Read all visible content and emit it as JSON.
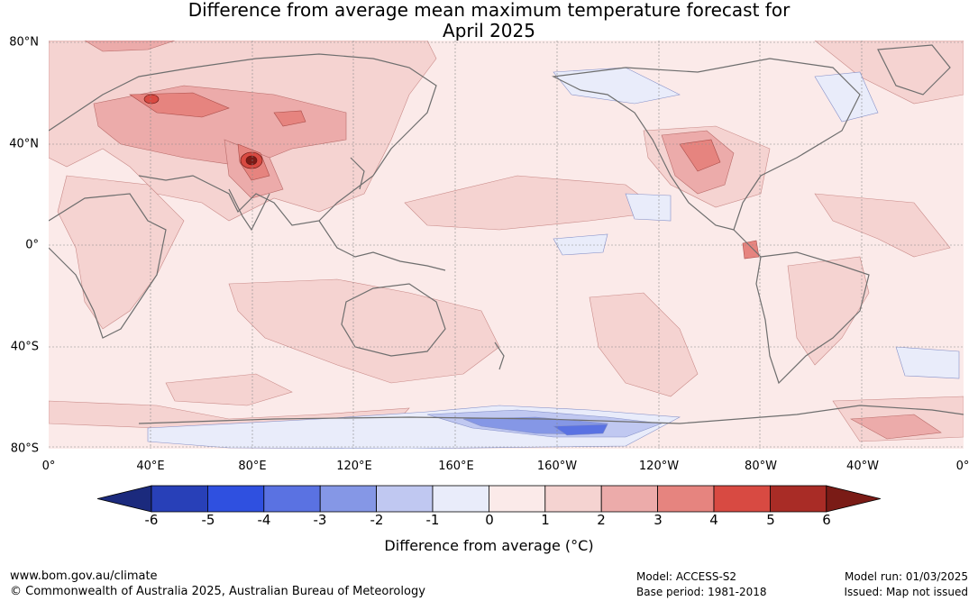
{
  "title": {
    "line1": "Difference from average mean maximum temperature forecast for",
    "line2": "April 2025"
  },
  "map": {
    "lat_labels": [
      "80°N",
      "40°N",
      "0°",
      "40°S",
      "80°S"
    ],
    "lon_labels": [
      "0°",
      "40°E",
      "80°E",
      "120°E",
      "160°E",
      "160°W",
      "120°W",
      "80°W",
      "40°W",
      "0°"
    ],
    "background_anomaly_color": "#fbeae9",
    "coastline_color": "#6e6e6e"
  },
  "legend": {
    "title": "Difference from average (°C)",
    "ticks": [
      "-6",
      "-5",
      "-4",
      "-3",
      "-2",
      "-1",
      "0",
      "1",
      "2",
      "3",
      "4",
      "5",
      "6"
    ],
    "colors": [
      "#1b2a7d",
      "#2840b8",
      "#2f50e0",
      "#5a72e2",
      "#8597e6",
      "#c0c8f1",
      "#e9ecfa",
      "#fbeae9",
      "#f5d3d1",
      "#ecabaa",
      "#e6847f",
      "#d84a42",
      "#a92c26",
      "#7a1b16"
    ]
  },
  "footer": {
    "website": "www.bom.gov.au/climate",
    "copyright": "© Commonwealth of Australia 2025, Australian Bureau of Meteorology",
    "model": "Model: ACCESS-S2",
    "base_period": "Base period: 1981-2018",
    "model_run": "Model run: 01/03/2025",
    "issued": "Issued: Map not issued"
  }
}
